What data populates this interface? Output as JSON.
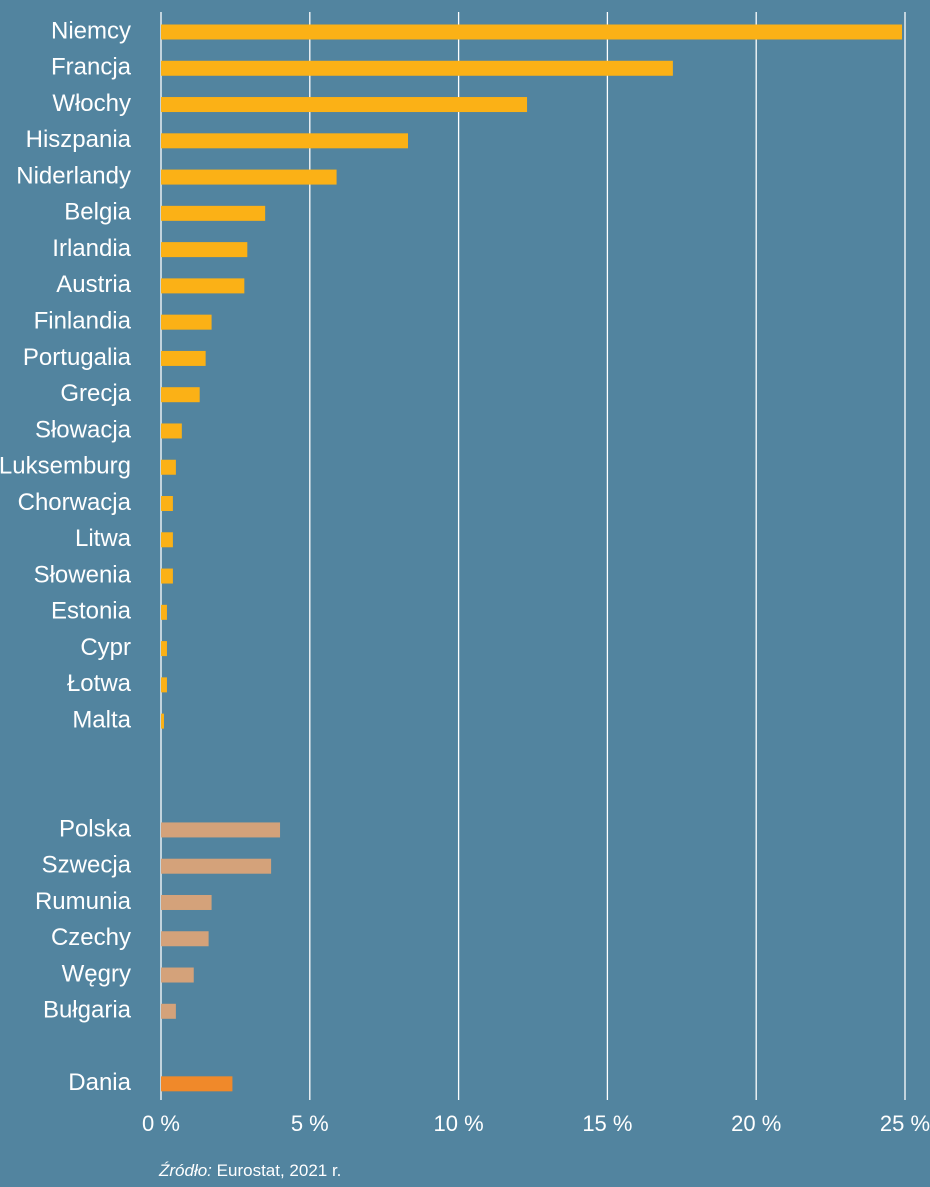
{
  "chart_data": {
    "type": "bar",
    "orientation": "horizontal",
    "categories": [
      "Niemcy",
      "Francja",
      "Włochy",
      "Hiszpania",
      "Niderlandy",
      "Belgia",
      "Irlandia",
      "Austria",
      "Finlandia",
      "Portugalia",
      "Grecja",
      "Słowacja",
      "Luksemburg",
      "Chorwacja",
      "Litwa",
      "Słowenia",
      "Estonia",
      "Cypr",
      "Łotwa",
      "Malta",
      null,
      null,
      "Polska",
      "Szwecja",
      "Rumunia",
      "Czechy",
      "Węgry",
      "Bułgaria",
      null,
      "Dania"
    ],
    "values": [
      24.9,
      17.2,
      12.3,
      8.3,
      5.9,
      3.5,
      2.9,
      2.8,
      1.7,
      1.5,
      1.3,
      0.7,
      0.5,
      0.4,
      0.4,
      0.4,
      0.2,
      0.2,
      0.2,
      0.1,
      null,
      null,
      4.0,
      3.7,
      1.7,
      1.6,
      1.1,
      0.5,
      null,
      2.4
    ],
    "colors": [
      "#fbb116",
      "#fbb116",
      "#fbb116",
      "#fbb116",
      "#fbb116",
      "#fbb116",
      "#fbb116",
      "#fbb116",
      "#fbb116",
      "#fbb116",
      "#fbb116",
      "#fbb116",
      "#fbb116",
      "#fbb116",
      "#fbb116",
      "#fbb116",
      "#fbb116",
      "#fbb116",
      "#fbb116",
      "#fbb116",
      null,
      null,
      "#d4a27a",
      "#d4a27a",
      "#d4a27a",
      "#d4a27a",
      "#d4a27a",
      "#d4a27a",
      null,
      "#f0892a"
    ],
    "xlim": [
      0,
      25
    ],
    "xticks": [
      {
        "value": 0,
        "label": "0 %"
      },
      {
        "value": 5,
        "label": "5 %"
      },
      {
        "value": 10,
        "label": "10 %"
      },
      {
        "value": 15,
        "label": "15 %"
      },
      {
        "value": 20,
        "label": "20 %"
      },
      {
        "value": 25,
        "label": "25 %"
      }
    ],
    "grid": true,
    "source_label": "Źródło:",
    "source": "Eurostat, 2021 r."
  }
}
